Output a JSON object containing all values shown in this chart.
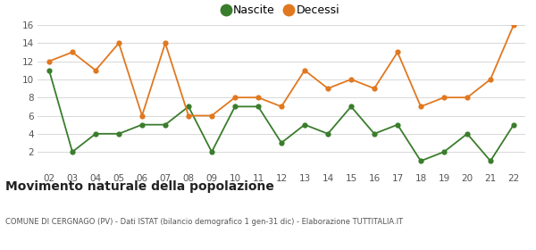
{
  "years": [
    "02",
    "03",
    "04",
    "05",
    "06",
    "07",
    "08",
    "09",
    "10",
    "11",
    "12",
    "13",
    "14",
    "15",
    "16",
    "17",
    "18",
    "19",
    "20",
    "21",
    "22"
  ],
  "nascite": [
    11,
    2,
    4,
    4,
    5,
    5,
    7,
    2,
    7,
    7,
    3,
    5,
    4,
    7,
    4,
    5,
    1,
    2,
    4,
    1,
    5
  ],
  "decessi": [
    12,
    13,
    11,
    14,
    6,
    14,
    6,
    6,
    8,
    8,
    7,
    11,
    9,
    10,
    9,
    13,
    7,
    8,
    8,
    10,
    16
  ],
  "nascite_color": "#3a7d2c",
  "decessi_color": "#e07820",
  "title": "Movimento naturale della popolazione",
  "subtitle": "COMUNE DI CERGNAGO (PV) - Dati ISTAT (bilancio demografico 1 gen-31 dic) - Elaborazione TUTTITALIA.IT",
  "legend_nascite": "Nascite",
  "legend_decessi": "Decessi",
  "ylim": [
    0,
    16
  ],
  "yticks": [
    0,
    2,
    4,
    6,
    8,
    10,
    12,
    14,
    16
  ],
  "background_color": "#ffffff",
  "grid_color": "#d8d8d8"
}
